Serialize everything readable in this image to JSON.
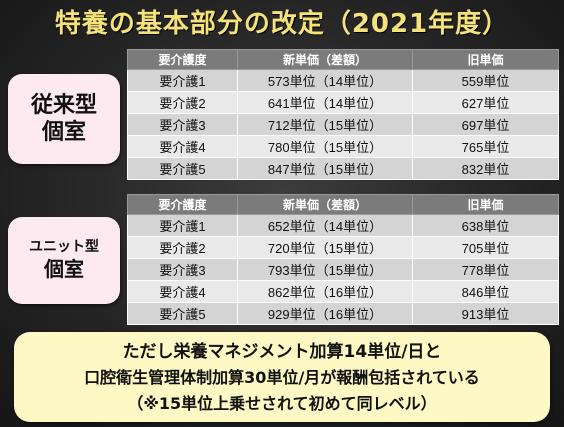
{
  "title": "特養の基本部分の改定（2021年度）",
  "sections": [
    {
      "label_line1": "従来型",
      "label_line2": "個室",
      "headers": [
        "要介護度",
        "新単価（差額）",
        "旧単価"
      ],
      "rows": [
        [
          "要介護1",
          "573単位（14単位）",
          "559単位"
        ],
        [
          "要介護2",
          "641単位（14単位）",
          "627単位"
        ],
        [
          "要介護3",
          "712単位（15単位）",
          "697単位"
        ],
        [
          "要介護4",
          "780単位（15単位）",
          "765単位"
        ],
        [
          "要介護5",
          "847単位（15単位）",
          "832単位"
        ]
      ]
    },
    {
      "label_line1": "ユニット型",
      "label_line2": "個室",
      "headers": [
        "要介護度",
        "新単価（差額）",
        "旧単価"
      ],
      "rows": [
        [
          "要介護1",
          "652単位（14単位）",
          "638単位"
        ],
        [
          "要介護2",
          "720単位（15単位）",
          "705単位"
        ],
        [
          "要介護3",
          "793単位（15単位）",
          "778単位"
        ],
        [
          "要介護4",
          "862単位（16単位）",
          "846単位"
        ],
        [
          "要介護5",
          "929単位（16単位）",
          "913単位"
        ]
      ]
    }
  ],
  "note": {
    "line1": "ただし栄養マネジメント加算14単位/日と",
    "line2": "口腔衛生管理体制加算30単位/月が報酬包括されている",
    "line3": "（※15単位上乗せされて初めて同レベル）"
  },
  "colors": {
    "title": "#f5e27a",
    "header_bg": "#7b7b7b",
    "label_bg": "#fde9f0",
    "note_bg": "#fdf8c4"
  }
}
